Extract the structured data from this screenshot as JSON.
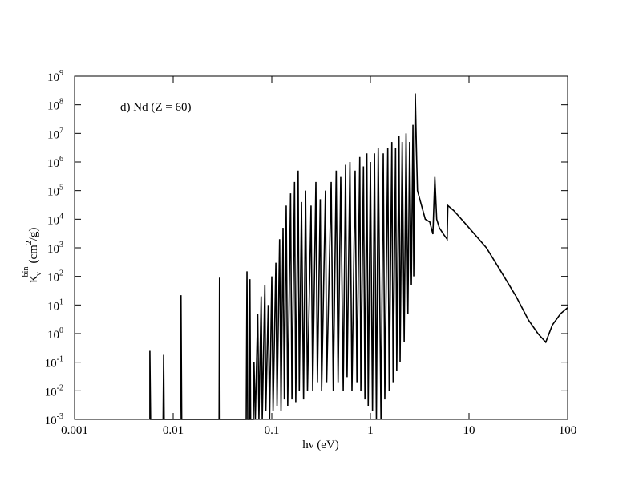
{
  "chart_data": {
    "type": "line",
    "annotation": "d) Nd (Z = 60)",
    "x_label": "hν (eV)",
    "y_label_parts": [
      "κ",
      "ν",
      "bin",
      "(cm",
      "2",
      "/g)"
    ],
    "log_x": true,
    "log_y": true,
    "color": "#000000",
    "xlim": [
      0.001,
      100
    ],
    "ylim": [
      0.001,
      1000000000
    ],
    "xticks": [
      0.001,
      0.01,
      0.1,
      1,
      10,
      100
    ],
    "yticks": [
      {
        "value": 0.001,
        "label": "10",
        "exponent": "-3"
      },
      {
        "value": 0.01,
        "label": "10",
        "exponent": "-2"
      },
      {
        "value": 0.1,
        "label": "10",
        "exponent": "-1"
      },
      {
        "value": 1,
        "label": "10",
        "exponent": "0"
      },
      {
        "value": 10,
        "label": "10",
        "exponent": "1"
      },
      {
        "value": 100,
        "label": "10",
        "exponent": "2"
      },
      {
        "value": 1000,
        "label": "10",
        "exponent": "3"
      },
      {
        "value": 10000,
        "label": "10",
        "exponent": "4"
      },
      {
        "value": 100000,
        "label": "10",
        "exponent": "5"
      },
      {
        "value": 1000000,
        "label": "10",
        "exponent": "6"
      },
      {
        "value": 10000000,
        "label": "10",
        "exponent": "7"
      },
      {
        "value": 100000000,
        "label": "10",
        "exponent": "8"
      },
      {
        "value": 1000000000,
        "label": "10",
        "exponent": "9"
      }
    ],
    "x": [
      0.0058,
      0.0058,
      0.0059,
      0.0079,
      0.008,
      0.0081,
      0.0118,
      0.012,
      0.0122,
      0.0292,
      0.0295,
      0.0298,
      0.055,
      0.056,
      0.057,
      0.0595,
      0.06,
      0.061,
      0.065,
      0.066,
      0.068,
      0.072,
      0.074,
      0.078,
      0.08,
      0.085,
      0.087,
      0.092,
      0.095,
      0.1,
      0.103,
      0.11,
      0.113,
      0.12,
      0.124,
      0.13,
      0.134,
      0.14,
      0.145,
      0.155,
      0.16,
      0.17,
      0.175,
      0.185,
      0.19,
      0.2,
      0.21,
      0.22,
      0.23,
      0.25,
      0.26,
      0.28,
      0.29,
      0.31,
      0.32,
      0.35,
      0.36,
      0.4,
      0.42,
      0.45,
      0.47,
      0.5,
      0.53,
      0.56,
      0.58,
      0.62,
      0.65,
      0.7,
      0.73,
      0.78,
      0.8,
      0.85,
      0.88,
      0.92,
      0.95,
      1.0,
      1.05,
      1.1,
      1.15,
      1.2,
      1.28,
      1.35,
      1.4,
      1.5,
      1.55,
      1.65,
      1.7,
      1.8,
      1.85,
      1.95,
      2.0,
      2.1,
      2.2,
      2.3,
      2.4,
      2.5,
      2.6,
      2.7,
      2.75,
      2.85,
      2.95,
      3.0,
      3.3,
      3.6,
      4.0,
      4.3,
      4.5,
      4.7,
      5.0,
      5.5,
      6.0,
      6.1,
      7,
      8,
      10,
      15,
      20,
      30,
      40,
      50,
      60,
      70,
      85,
      100
    ],
    "values": [
      0.001,
      0.25,
      0.001,
      0.001,
      0.18,
      0.001,
      0.001,
      22,
      0.001,
      0.001,
      90,
      0.001,
      0.001,
      150,
      0.001,
      0.001,
      80,
      0.001,
      0.001,
      0.1,
      0.001,
      5,
      0.001,
      20,
      0.001,
      50,
      0.002,
      10,
      0.001,
      100,
      0.002,
      300,
      0.003,
      2000,
      0.002,
      5000,
      0.005,
      30000,
      0.003,
      80000,
      0.005,
      200000,
      0.004,
      500000,
      0.01,
      40000,
      0.005,
      100000,
      0.01,
      30000,
      0.01,
      200000,
      0.02,
      50000,
      0.01,
      100000,
      0.02,
      200000,
      0.01,
      500000,
      0.02,
      300000,
      0.01,
      800000,
      0.03,
      1000000,
      0.01,
      500000,
      0.02,
      1500000,
      0.01,
      700000,
      0.005,
      2000000,
      0.003,
      1000000,
      0.002,
      2000000,
      0.001,
      3000000,
      0.001,
      2000000,
      0.005,
      3000000,
      0.01,
      5000000,
      0.02,
      3000000,
      0.05,
      8000000,
      0.1,
      5000000,
      0.5,
      10000000,
      5,
      5000000,
      50,
      20000000,
      100,
      250000000,
      1000000,
      100000,
      30000,
      10000,
      8000,
      3000,
      300000,
      10000,
      5000,
      3000,
      2000,
      30000,
      20000,
      12000,
      5000,
      1000,
      200,
      20,
      3,
      1,
      0.5,
      2,
      5,
      8
    ]
  }
}
